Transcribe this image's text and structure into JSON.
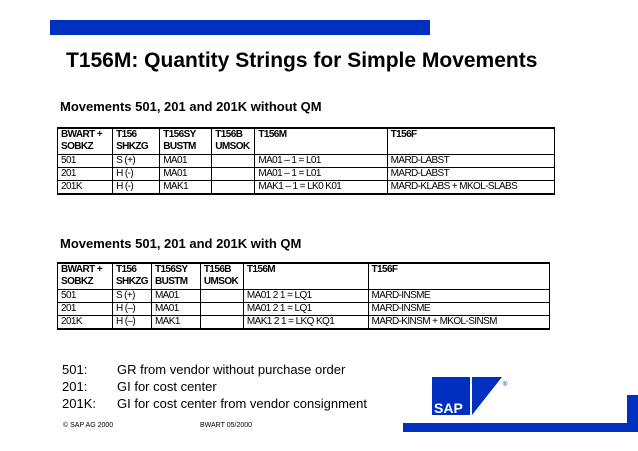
{
  "title": "T156M: Quantity Strings for Simple Movements",
  "section1": {
    "heading": "Movements 501, 201 and 201K without QM",
    "headers": [
      [
        "BWART +",
        "SOBKZ"
      ],
      [
        "T156",
        "SHKZG"
      ],
      [
        "T156SY",
        "BUSTM"
      ],
      [
        "T156B",
        "UMSOK"
      ],
      [
        "T156M",
        ""
      ],
      [
        "T156F",
        ""
      ]
    ],
    "rows": [
      [
        "501",
        "S (+)",
        "MA01",
        "",
        "MA01 – 1 = L01",
        "MARD-LABST"
      ],
      [
        "201",
        "H (-)",
        "MA01",
        "",
        "MA01 – 1 = L01",
        "MARD-LABST"
      ],
      [
        "201K",
        "H (-)",
        "MAK1",
        "",
        "MAK1 – 1 = LK0 K01",
        "MARD-KLABS + MKOL-SLABS"
      ]
    ]
  },
  "section2": {
    "heading": "Movements 501, 201 and 201K with QM",
    "headers": [
      [
        "BWART +",
        "SOBKZ"
      ],
      [
        "T156",
        "SHKZG"
      ],
      [
        "T156SY",
        "BUSTM"
      ],
      [
        "T156B",
        "UMSOK"
      ],
      [
        "T156M",
        ""
      ],
      [
        "T156F",
        ""
      ]
    ],
    "rows": [
      [
        "501",
        "S (+)",
        "MA01",
        "",
        "MA01 2 1 = LQ1",
        "MARD-INSME"
      ],
      [
        "201",
        "H (–)",
        "MA01",
        "",
        "MA01 2 1 = LQ1",
        "MARD-INSME"
      ],
      [
        "201K",
        "H (–)",
        "MAK1",
        "",
        "MAK1 2 1 = LKQ KQ1",
        "MARD-KINSM + MKOL-SINSM"
      ]
    ]
  },
  "legend": [
    {
      "key": "501:",
      "text": "GR from vendor without purchase order"
    },
    {
      "key": "201:",
      "text": "GI for cost center"
    },
    {
      "key": "201K:",
      "text": "GI for cost center from vendor consignment"
    }
  ],
  "footer": {
    "copyright": "© SAP AG 2000",
    "doc": "BWART 05/2000"
  },
  "logo": {
    "text": "SAP",
    "brand_color": "#0030c0"
  }
}
